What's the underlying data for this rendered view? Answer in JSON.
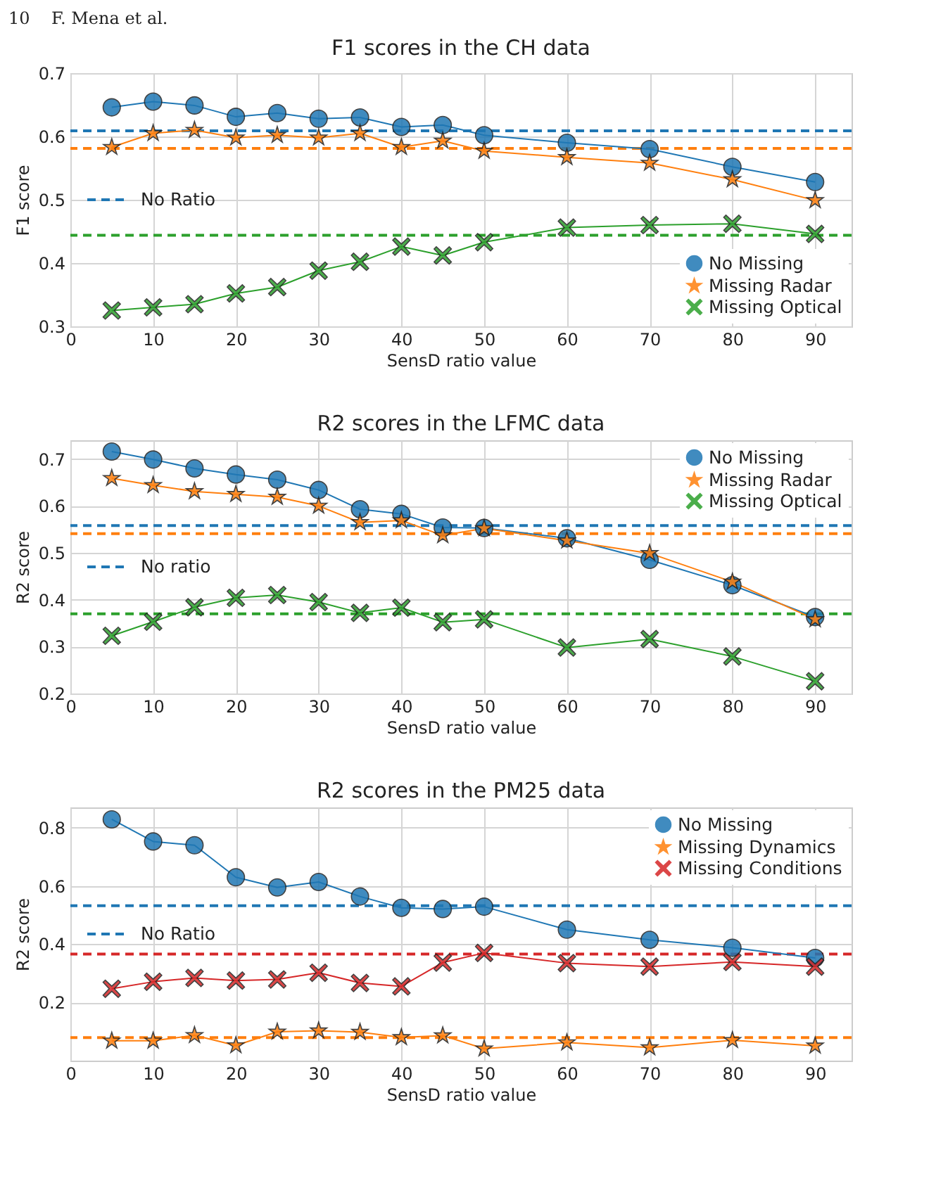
{
  "chart_data": [
    {
      "type": "line",
      "title": "F1 scores in the CH data",
      "xlabel": "SensD ratio value",
      "ylabel": "F1 score",
      "annotations": [
        "10    F. Mena et al."
      ],
      "x": [
        5,
        10,
        15,
        20,
        25,
        30,
        35,
        40,
        45,
        50,
        60,
        70,
        80,
        90
      ],
      "series": [
        {
          "name": "No Missing",
          "color": "#1f77b4",
          "marker": "circle",
          "values": [
            0.646,
            0.655,
            0.649,
            0.631,
            0.637,
            0.628,
            0.63,
            0.615,
            0.618,
            0.602,
            0.59,
            0.58,
            0.552,
            0.528
          ]
        },
        {
          "name": "Missing Radar",
          "color": "#ff7f0e",
          "marker": "star",
          "values": [
            0.583,
            0.605,
            0.61,
            0.598,
            0.602,
            0.598,
            0.605,
            0.583,
            0.593,
            0.577,
            0.567,
            0.558,
            0.532,
            0.499
          ]
        },
        {
          "name": "Missing Optical",
          "color": "#2ca02c",
          "marker": "cross",
          "values": [
            0.325,
            0.33,
            0.335,
            0.352,
            0.362,
            0.388,
            0.402,
            0.426,
            0.412,
            0.433,
            0.456,
            0.46,
            0.462,
            0.446
          ]
        }
      ],
      "ref_lines": [
        {
          "axis": "y",
          "value": 0.609,
          "label": "No Ratio",
          "color": "#1f77b4",
          "line_style": "dashed"
        },
        {
          "axis": "y",
          "value": 0.581,
          "color": "#ff7f0e",
          "line_style": "dashed"
        },
        {
          "axis": "y",
          "value": 0.444,
          "color": "#2ca02c",
          "line_style": "dashed"
        }
      ],
      "xlim": [
        0,
        94.4
      ],
      "xticks": [
        0,
        10,
        20,
        30,
        40,
        50,
        60,
        70,
        80,
        90
      ],
      "ylim": [
        0.3,
        0.7
      ],
      "yticks": [
        0.3,
        0.4,
        0.5,
        0.6,
        0.7
      ],
      "grid": true,
      "legend": "bottom right"
    },
    {
      "type": "line",
      "title": "R2 scores in the LFMC data",
      "xlabel": "SensD ratio value",
      "ylabel": "R2 score",
      "x": [
        5,
        10,
        15,
        20,
        25,
        30,
        35,
        40,
        45,
        50,
        60,
        70,
        80,
        90
      ],
      "series": [
        {
          "name": "No Missing",
          "color": "#1f77b4",
          "marker": "circle",
          "values": [
            0.716,
            0.699,
            0.68,
            0.667,
            0.656,
            0.634,
            0.593,
            0.583,
            0.554,
            0.553,
            0.531,
            0.485,
            0.431,
            0.363
          ]
        },
        {
          "name": "Missing Radar",
          "color": "#ff7f0e",
          "marker": "star",
          "values": [
            0.659,
            0.644,
            0.631,
            0.625,
            0.619,
            0.6,
            0.565,
            0.569,
            0.537,
            0.552,
            0.526,
            0.499,
            0.438,
            0.358
          ]
        },
        {
          "name": "Missing Optical",
          "color": "#2ca02c",
          "marker": "cross",
          "values": [
            0.323,
            0.353,
            0.384,
            0.404,
            0.41,
            0.395,
            0.372,
            0.383,
            0.352,
            0.358,
            0.298,
            0.316,
            0.279,
            0.226
          ]
        }
      ],
      "ref_lines": [
        {
          "axis": "y",
          "value": 0.558,
          "label": "No ratio",
          "color": "#1f77b4",
          "line_style": "dashed"
        },
        {
          "axis": "y",
          "value": 0.541,
          "color": "#ff7f0e",
          "line_style": "dashed"
        },
        {
          "axis": "y",
          "value": 0.37,
          "color": "#2ca02c",
          "line_style": "dashed"
        }
      ],
      "xlim": [
        0,
        94.4
      ],
      "xticks": [
        0,
        10,
        20,
        30,
        40,
        50,
        60,
        70,
        80,
        90
      ],
      "ylim": [
        0.2,
        0.74
      ],
      "yticks": [
        0.2,
        0.3,
        0.4,
        0.5,
        0.6,
        0.7
      ],
      "grid": true,
      "legend": "top right"
    },
    {
      "type": "line",
      "title": "R2 scores in the PM25 data",
      "xlabel": "SensD ratio value",
      "ylabel": "R2 score",
      "x": [
        5,
        10,
        15,
        20,
        25,
        30,
        35,
        40,
        45,
        50,
        60,
        70,
        80,
        90
      ],
      "series": [
        {
          "name": "No Missing",
          "color": "#1f77b4",
          "marker": "circle",
          "values": [
            0.829,
            0.753,
            0.74,
            0.63,
            0.595,
            0.614,
            0.564,
            0.525,
            0.521,
            0.529,
            0.45,
            0.415,
            0.388,
            0.353
          ]
        },
        {
          "name": "Missing Dynamics",
          "color": "#ff7f0e",
          "marker": "star",
          "values": [
            0.068,
            0.068,
            0.087,
            0.052,
            0.099,
            0.103,
            0.098,
            0.08,
            0.086,
            0.041,
            0.062,
            0.045,
            0.07,
            0.051
          ]
        },
        {
          "name": "Missing Conditions",
          "color": "#d62728",
          "marker": "cross",
          "values": [
            0.247,
            0.271,
            0.284,
            0.275,
            0.279,
            0.302,
            0.267,
            0.255,
            0.337,
            0.37,
            0.335,
            0.323,
            0.339,
            0.323
          ]
        }
      ],
      "ref_lines": [
        {
          "axis": "y",
          "value": 0.532,
          "label": "No Ratio",
          "color": "#1f77b4",
          "line_style": "dashed"
        },
        {
          "axis": "y",
          "value": 0.366,
          "color": "#d62728",
          "line_style": "dashed"
        },
        {
          "axis": "y",
          "value": 0.079,
          "color": "#ff7f0e",
          "line_style": "dashed"
        }
      ],
      "xlim": [
        0,
        94.4
      ],
      "xticks": [
        0,
        10,
        20,
        30,
        40,
        50,
        60,
        70,
        80,
        90
      ],
      "ylim": [
        0.0,
        0.87
      ],
      "yticks": [
        0.2,
        0.4,
        0.6,
        0.8
      ],
      "grid": true,
      "legend": "top right"
    }
  ]
}
